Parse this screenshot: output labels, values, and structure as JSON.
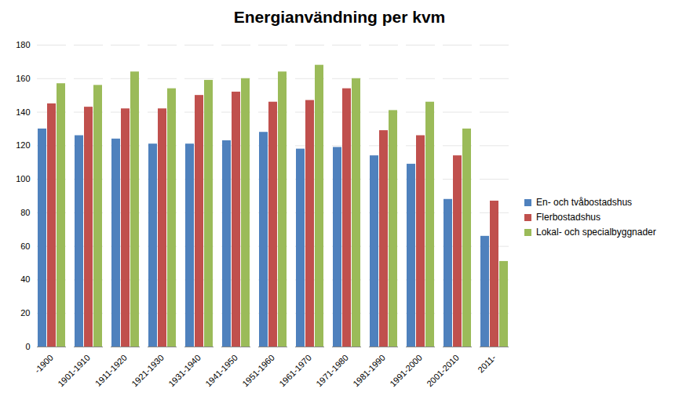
{
  "chart_data": {
    "type": "bar",
    "title": "Energianvändning per kvm",
    "categories": [
      "-1900",
      "1901-1910",
      "1911-1920",
      "1921-1930",
      "1931-1940",
      "1941-1950",
      "1951-1960",
      "1961-1970",
      "1971-1980",
      "1981-1990",
      "1991-2000",
      "2001-2010",
      "2011-"
    ],
    "series": [
      {
        "name": "En- och tvåbostadshus",
        "color": "#4f81bd",
        "values": [
          130,
          126,
          124,
          121,
          121,
          123,
          128,
          118,
          119,
          114,
          109,
          88,
          66
        ]
      },
      {
        "name": "Flerbostadshus",
        "color": "#c0504d",
        "values": [
          145,
          143,
          142,
          142,
          150,
          152,
          146,
          147,
          154,
          129,
          126,
          114,
          87
        ]
      },
      {
        "name": "Lokal- och specialbyggnader",
        "color": "#9bbb59",
        "values": [
          157,
          156,
          164,
          154,
          159,
          160,
          164,
          168,
          160,
          141,
          146,
          130,
          51
        ]
      }
    ],
    "ylim": [
      0,
      180
    ],
    "yticks": [
      0,
      20,
      40,
      60,
      80,
      100,
      120,
      140,
      160,
      180
    ],
    "grid": true,
    "legend": "right"
  }
}
